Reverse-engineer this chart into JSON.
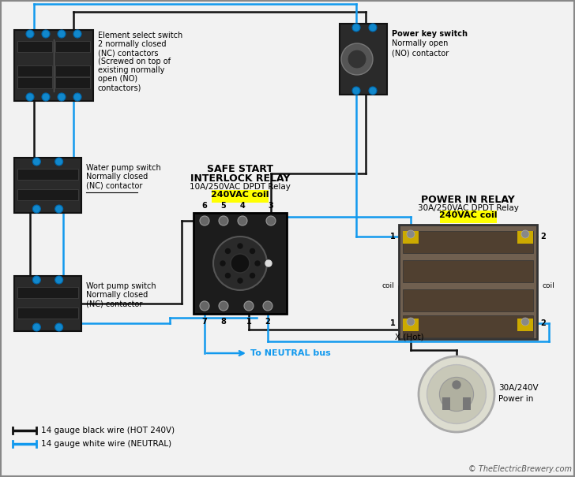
{
  "bg_color": "#f2f2f2",
  "wire_black": "#111111",
  "wire_blue": "#1199ee",
  "highlight_yellow": "#ffff00",
  "text_color": "#000000",
  "relay_label1": "SAFE START",
  "relay_label2": "INTERLOCK RELAY",
  "relay_label3": "10A/250VAC DPDT Relay",
  "relay_coil": "240VAC coil",
  "power_relay_label1": "POWER IN RELAY",
  "power_relay_label2": "30A/250VAC DPDT Relay",
  "power_relay_coil": "240VAC coil",
  "switch1_label1": "Element select switch",
  "switch1_label2": "2 normally closed",
  "switch1_label3": "(NC) contactors",
  "switch1_label4": "(Screwed on top of",
  "switch1_label5": "existing normally",
  "switch1_label6": "open (NO)",
  "switch1_label7": "contactors)",
  "switch2_label1": "Water pump switch",
  "switch2_label2": "Normally closed",
  "switch2_label3": "(NC) contactor",
  "switch2_label4": "_",
  "switch3_label1": "Wort pump switch",
  "switch3_label2": "Normally closed",
  "switch3_label3": "(NC) contactor",
  "power_key_label1": "Power key switch",
  "power_key_label2": "Normally open",
  "power_key_label3": "(NO) contactor",
  "plug_label1": "30A/240V",
  "plug_label2": "Power in",
  "hot_label": "X (Hot)",
  "neutral_label": "To NEUTRAL bus",
  "legend1": "14 gauge black wire (HOT 240V)",
  "legend2": "14 gauge white wire (NEUTRAL)",
  "copyright": "© TheElectricBrewery.com"
}
